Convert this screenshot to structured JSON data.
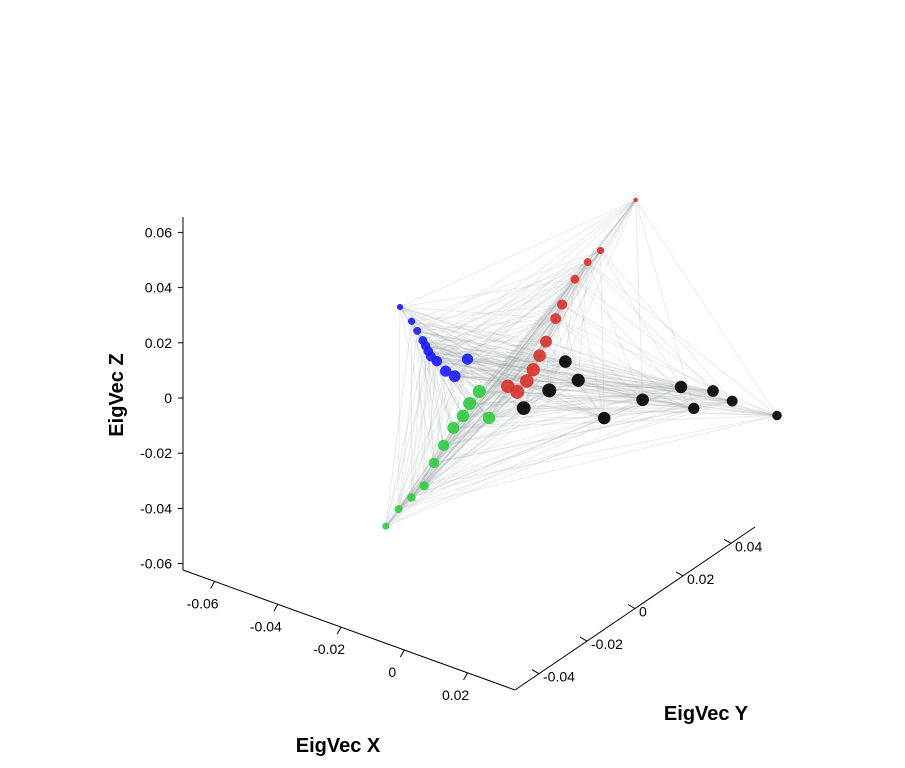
{
  "chart_data": {
    "type": "scatter",
    "dimensions": 3,
    "title": "",
    "xlabel": "EigVec X",
    "ylabel": "EigVec Y",
    "zlabel": "EigVec Z",
    "xlim": [
      -0.07,
      0.035
    ],
    "ylim": [
      -0.05,
      0.05
    ],
    "zlim": [
      -0.065,
      0.065
    ],
    "x_ticks": [
      "-0.06",
      "-0.04",
      "-0.02",
      "0",
      "0.02"
    ],
    "y_ticks": [
      "-0.04",
      "-0.02",
      "0",
      "0.02",
      "0.04"
    ],
    "z_ticks": [
      "0.06",
      "0.04",
      "0.02",
      "0",
      "-0.02",
      "-0.04",
      "-0.06"
    ],
    "grid": false,
    "legend": "none",
    "edges": "dense network edges connecting nodes",
    "colors": {
      "edge": "#9aa5a5",
      "red_group": "#d9302b",
      "blue_group": "#1a1aff",
      "green_group": "#2ecc40",
      "black_group": "#000000"
    },
    "series": [
      {
        "color": "#1a1aff",
        "points": [
          {
            "x": -0.06,
            "y": 0.02,
            "z": 0.02
          },
          {
            "x": -0.052,
            "y": 0.016,
            "z": 0.017
          },
          {
            "x": -0.047,
            "y": 0.013,
            "z": 0.015
          },
          {
            "x": -0.042,
            "y": 0.01,
            "z": 0.013
          },
          {
            "x": -0.039,
            "y": 0.008,
            "z": 0.012
          },
          {
            "x": -0.036,
            "y": 0.006,
            "z": 0.011
          },
          {
            "x": -0.033,
            "y": 0.004,
            "z": 0.01
          },
          {
            "x": -0.03,
            "y": 0.003,
            "z": 0.009
          },
          {
            "x": -0.024,
            "y": 0.0,
            "z": 0.007
          },
          {
            "x": -0.02,
            "y": -0.001,
            "z": 0.006
          },
          {
            "x": -0.018,
            "y": 0.001,
            "z": 0.012
          }
        ]
      },
      {
        "color": "#2ecc40",
        "points": [
          {
            "x": -0.022,
            "y": -0.02,
            "z": -0.044
          },
          {
            "x": -0.02,
            "y": -0.018,
            "z": -0.038
          },
          {
            "x": -0.018,
            "y": -0.016,
            "z": -0.034
          },
          {
            "x": -0.016,
            "y": -0.014,
            "z": -0.03
          },
          {
            "x": -0.015,
            "y": -0.012,
            "z": -0.022
          },
          {
            "x": -0.014,
            "y": -0.01,
            "z": -0.016
          },
          {
            "x": -0.013,
            "y": -0.008,
            "z": -0.01
          },
          {
            "x": -0.012,
            "y": -0.006,
            "z": -0.006
          },
          {
            "x": -0.012,
            "y": -0.004,
            "z": -0.002
          },
          {
            "x": -0.011,
            "y": -0.002,
            "z": 0.002
          },
          {
            "x": -0.01,
            "y": 0.0,
            "z": -0.008
          }
        ]
      },
      {
        "color": "#d9302b",
        "points": [
          {
            "x": 0.016,
            "y": 0.02,
            "z": 0.07
          },
          {
            "x": 0.01,
            "y": 0.015,
            "z": 0.052
          },
          {
            "x": 0.008,
            "y": 0.013,
            "z": 0.048
          },
          {
            "x": 0.006,
            "y": 0.011,
            "z": 0.042
          },
          {
            "x": 0.004,
            "y": 0.009,
            "z": 0.033
          },
          {
            "x": 0.003,
            "y": 0.008,
            "z": 0.028
          },
          {
            "x": 0.002,
            "y": 0.006,
            "z": 0.02
          },
          {
            "x": 0.001,
            "y": 0.005,
            "z": 0.015
          },
          {
            "x": 0.0,
            "y": 0.004,
            "z": 0.01
          },
          {
            "x": -0.001,
            "y": 0.003,
            "z": 0.006
          },
          {
            "x": -0.003,
            "y": 0.002,
            "z": 0.002
          },
          {
            "x": -0.005,
            "y": 0.001,
            "z": 0.004
          }
        ]
      },
      {
        "color": "#000000",
        "points": [
          {
            "x": 0.035,
            "y": 0.045,
            "z": -0.012
          },
          {
            "x": 0.028,
            "y": 0.038,
            "z": -0.006
          },
          {
            "x": 0.025,
            "y": 0.035,
            "z": -0.002
          },
          {
            "x": 0.022,
            "y": 0.032,
            "z": -0.008
          },
          {
            "x": 0.02,
            "y": 0.03,
            "z": 0.0
          },
          {
            "x": 0.014,
            "y": 0.024,
            "z": -0.004
          },
          {
            "x": 0.008,
            "y": 0.018,
            "z": -0.01
          },
          {
            "x": 0.006,
            "y": 0.012,
            "z": 0.005
          },
          {
            "x": 0.004,
            "y": 0.01,
            "z": 0.012
          },
          {
            "x": 0.002,
            "y": 0.007,
            "z": 0.002
          },
          {
            "x": -0.002,
            "y": 0.003,
            "z": -0.004
          }
        ]
      }
    ]
  }
}
